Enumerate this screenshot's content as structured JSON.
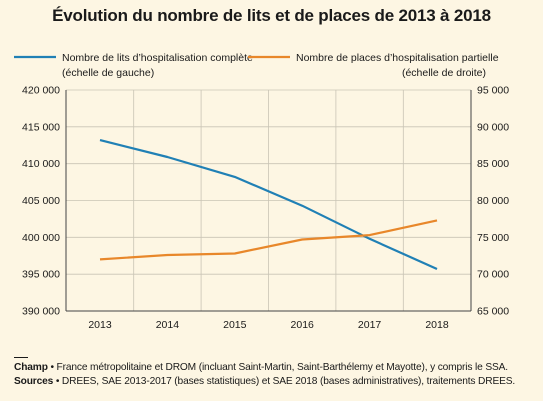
{
  "title": "Évolution du nombre de lits et de places de 2013 à 2018",
  "chart_data": {
    "type": "line",
    "title": "Évolution du nombre de lits et de places de 2013 à 2018",
    "categories": [
      "2013",
      "2014",
      "2015",
      "2016",
      "2017",
      "2018"
    ],
    "axes": {
      "left": {
        "ylim": [
          390000,
          420000
        ],
        "ticks": [
          "390 000",
          "395 000",
          "400 000",
          "405 000",
          "410 000",
          "415 000",
          "420 000"
        ]
      },
      "right": {
        "ylim": [
          65000,
          95000
        ],
        "ticks": [
          "65 000",
          "70 000",
          "75 000",
          "80 000",
          "85 000",
          "90 000",
          "95 000"
        ]
      }
    },
    "grid": true,
    "legend_position": "top",
    "series": [
      {
        "name": "Nombre de lits d’hospitalisation complète",
        "name_note": "(échelle de gauche)",
        "axis": "left",
        "color": "#2080b5",
        "values": [
          413200,
          410900,
          408200,
          404300,
          399800,
          395700
        ]
      },
      {
        "name": "Nombre de places d’hospitalisation partielle",
        "name_note": "(échelle de droite)",
        "axis": "right",
        "color": "#e8872a",
        "values": [
          72000,
          72600,
          72800,
          74700,
          75300,
          77300
        ]
      }
    ]
  },
  "footer": {
    "champ_label": "Champ",
    "champ_text": " • France métropolitaine et DROM (incluant Saint-Martin, Saint-Barthélemy et Mayotte), y compris le SSA.",
    "sources_label": "Sources",
    "sources_text": " • DREES, SAE 2013-2017 (bases statistiques) et SAE 2018 (bases administratives), traitements DREES."
  }
}
